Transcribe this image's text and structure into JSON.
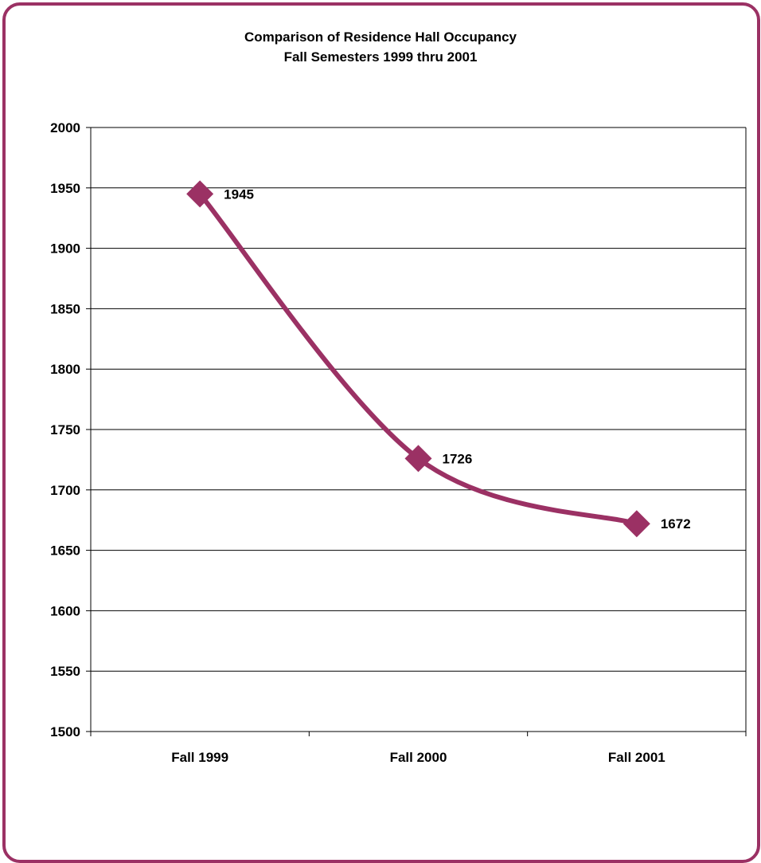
{
  "chart_data": {
    "type": "line",
    "title": "Comparison of Residence Hall Occupancy",
    "subtitle": "Fall Semesters 1999 thru 2001",
    "categories": [
      "Fall 1999",
      "Fall 2000",
      "Fall 2001"
    ],
    "series": [
      {
        "values": [
          1945,
          1726,
          1672
        ]
      }
    ],
    "data_labels": [
      "1945",
      "1726",
      "1672"
    ],
    "xlabel": "",
    "ylabel": "",
    "ylim": [
      1500,
      2000
    ],
    "yticks": [
      1500,
      1550,
      1600,
      1650,
      1700,
      1750,
      1800,
      1850,
      1900,
      1950,
      2000
    ],
    "grid": true,
    "smooth": true,
    "legend": "none",
    "line_color": "#9b3164",
    "frame_color": "#9b3164"
  }
}
